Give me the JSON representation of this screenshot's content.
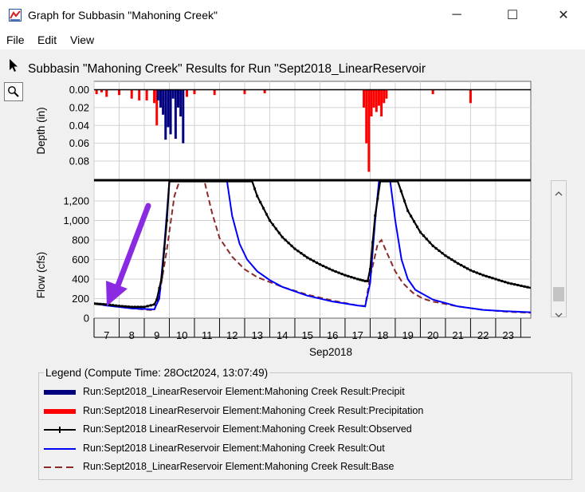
{
  "window": {
    "title": "Graph for Subbasin \"Mahoning Creek\"",
    "minimize_glyph": "─",
    "maximize_glyph": "☐",
    "close_glyph": "✕"
  },
  "menu": {
    "file": "File",
    "edit": "Edit",
    "view": "View"
  },
  "tools": {
    "pointer_icon": "arrow-pointer-icon",
    "zoom_icon": "magnifier-icon"
  },
  "plot_title": "Subbasin \"Mahoning Creek\" Results for Run \"Sept2018_LinearReservoir",
  "legend": {
    "title": "Legend (Compute Time: 28Oct2024, 13:07:49)",
    "entries": [
      {
        "label": "Run:Sept2018_LinearReservoir Element:Mahoning Creek Result:Precipit",
        "color": "#00007f",
        "style": "thick"
      },
      {
        "label": "Run:Sept2018  LinearReservoir Element:Mahoning Creek Result:Precipitation",
        "color": "#ff0000",
        "style": "thick"
      },
      {
        "label": "Run:Sept2018  LinearReservoir Element:Mahoning Creek Result:Observed",
        "color": "#000000",
        "style": "marker"
      },
      {
        "label": "Run:Sept2018  LinearReservoir Element:Mahoning Creek Result:Out",
        "color": "#0000ff",
        "style": "line"
      },
      {
        "label": "Run:Sept2018_LinearReservoir Element:Mahoning Creek Result:Base",
        "color": "#8b2a2a",
        "style": "dashed"
      }
    ]
  },
  "annotation": {
    "color": "#8a2be2"
  },
  "chart_data": [
    {
      "type": "bar",
      "ylabel": "Depth (in)",
      "ylim": [
        0.1,
        0.0
      ],
      "yticks": [
        "0.00",
        "0.02",
        "0.04",
        "0.06",
        "0.08"
      ],
      "xlim": [
        6.5,
        23.9
      ],
      "series": [
        {
          "name": "Precipit",
          "color": "#00007f",
          "x": [
            9.05,
            9.15,
            9.25,
            9.35,
            9.45,
            9.55,
            9.65,
            9.75,
            9.85,
            9.95,
            10.05
          ],
          "values": [
            0.012,
            0.02,
            0.028,
            0.056,
            0.042,
            0.05,
            0.01,
            0.055,
            0.02,
            0.03,
            0.06
          ]
        },
        {
          "name": "Precipitation",
          "color": "#ff0000",
          "x": [
            6.6,
            6.8,
            7.0,
            7.5,
            8.0,
            8.3,
            8.6,
            8.9,
            9.0,
            10.2,
            10.5,
            11.3,
            12.5,
            13.3,
            17.25,
            17.35,
            17.45,
            17.55,
            17.65,
            17.75,
            17.85,
            17.95,
            18.05,
            18.15,
            20.0,
            21.5
          ],
          "values": [
            0.005,
            0.003,
            0.008,
            0.006,
            0.01,
            0.012,
            0.012,
            0.015,
            0.04,
            0.008,
            0.005,
            0.006,
            0.005,
            0.004,
            0.02,
            0.06,
            0.092,
            0.03,
            0.02,
            0.025,
            0.018,
            0.03,
            0.015,
            0.01,
            0.005,
            0.015
          ]
        }
      ]
    },
    {
      "type": "line",
      "ylabel": "Flow (cfs)",
      "xlabel": "Sep2018",
      "ylim": [
        0,
        1400
      ],
      "xlim": [
        6.5,
        23.9
      ],
      "yticks": [
        "0",
        "200",
        "400",
        "600",
        "800",
        "1,000",
        "1,200"
      ],
      "x_ticks": [
        "7",
        "8",
        "9",
        "10",
        "11",
        "12",
        "13",
        "14",
        "15",
        "16",
        "17",
        "18",
        "19",
        "20",
        "21",
        "22",
        "23"
      ],
      "series": [
        {
          "name": "Observed",
          "color": "#000000",
          "x": [
            6.5,
            7,
            7.5,
            8,
            8.5,
            8.9,
            9.0,
            9.2,
            9.4,
            9.5,
            9.6,
            12.8,
            13,
            13.5,
            14,
            14.5,
            15,
            15.5,
            16,
            16.5,
            17,
            17.3,
            17.4,
            17.5,
            17.7,
            17.9,
            18.1,
            18.4,
            18.6,
            19,
            19.5,
            20,
            20.5,
            21,
            21.5,
            22,
            22.5,
            23,
            23.9
          ],
          "values": [
            150,
            140,
            125,
            115,
            115,
            140,
            190,
            420,
            1000,
            1400,
            1400,
            1400,
            1250,
            1000,
            830,
            710,
            620,
            550,
            490,
            440,
            400,
            380,
            380,
            500,
            1050,
            1400,
            1400,
            1400,
            1400,
            1100,
            880,
            740,
            640,
            560,
            490,
            440,
            400,
            360,
            310
          ]
        },
        {
          "name": "Out",
          "color": "#0000ff",
          "x": [
            6.5,
            7,
            8,
            8.9,
            9.1,
            9.3,
            9.5,
            9.6,
            11.8,
            12,
            12.3,
            12.6,
            13,
            13.5,
            14,
            15,
            16,
            17,
            17.3,
            17.5,
            17.7,
            17.85,
            18.3,
            18.5,
            18.75,
            19,
            19.3,
            20,
            21,
            22,
            23,
            23.9
          ],
          "values": [
            150,
            130,
            100,
            90,
            200,
            750,
            1400,
            1400,
            1400,
            1050,
            760,
            600,
            480,
            390,
            320,
            230,
            170,
            130,
            120,
            360,
            1000,
            1400,
            1400,
            1000,
            600,
            400,
            290,
            190,
            120,
            85,
            70,
            60
          ]
        },
        {
          "name": "Base",
          "color": "#8b2a2a",
          "x": [
            6.5,
            7,
            8,
            8.9,
            9.1,
            9.4,
            9.7,
            9.9,
            10.9,
            11.2,
            11.5,
            12,
            12.5,
            13,
            14,
            15,
            16,
            17,
            17.3,
            17.5,
            17.8,
            17.95,
            18.2,
            18.5,
            18.8,
            19.2,
            19.6,
            20,
            21,
            22,
            23,
            23.9
          ],
          "values": [
            145,
            130,
            100,
            80,
            230,
            700,
            1250,
            1400,
            1400,
            1080,
            820,
            630,
            500,
            420,
            320,
            240,
            180,
            130,
            125,
            420,
            760,
            800,
            650,
            480,
            360,
            260,
            200,
            170,
            120,
            85,
            65,
            55
          ]
        }
      ]
    }
  ]
}
